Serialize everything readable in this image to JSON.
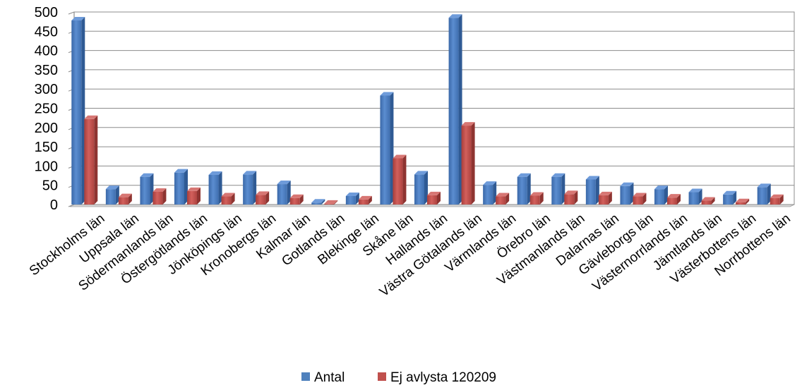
{
  "chart_data": {
    "type": "bar",
    "categories": [
      "Stockholms län",
      "Uppsala län",
      "Södermanlands län",
      "Östergötlands län",
      "Jönköpings län",
      "Kronobergs län",
      "Kalmar län",
      "Gotlands län",
      "Blekinge län",
      "Skåne län",
      "Hallands län",
      "Västra Götalands län",
      "Värmlands län",
      "Örebro län",
      "Västmanlands län",
      "Dalarnas län",
      "Gävleborgs län",
      "Västernorrlands län",
      "Jämtlands län",
      "Västerbottens län",
      "Norrbottens län"
    ],
    "series": [
      {
        "name": "Antal",
        "color": "#4F81BD",
        "values": [
          478,
          40,
          72,
          83,
          77,
          78,
          53,
          5,
          22,
          283,
          78,
          485,
          51,
          72,
          72,
          65,
          48,
          40,
          32,
          26,
          45
        ]
      },
      {
        "name": "Ej avlysta 120209",
        "color": "#C0504D",
        "values": [
          222,
          19,
          33,
          35,
          21,
          25,
          17,
          2,
          13,
          120,
          24,
          205,
          21,
          23,
          27,
          24,
          21,
          18,
          10,
          6,
          17
        ]
      }
    ],
    "yticks": [
      0,
      50,
      100,
      150,
      200,
      250,
      300,
      350,
      400,
      450,
      500
    ],
    "ylim": [
      0,
      500
    ],
    "grid": true,
    "legend_position": "bottom"
  }
}
